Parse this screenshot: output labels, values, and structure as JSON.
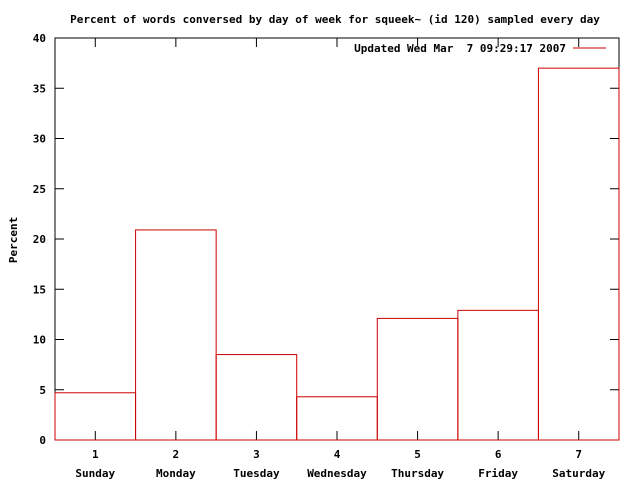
{
  "chart_data": {
    "type": "bar",
    "style": "histogram-steps",
    "title": "Percent of words conversed by day of week for squeek~ (id 120) sampled every day",
    "xlabel": "",
    "ylabel": "Percent",
    "x": [
      1,
      2,
      3,
      4,
      5,
      6,
      7
    ],
    "day_labels": [
      "Sunday",
      "Monday",
      "Tuesday",
      "Wednesday",
      "Thursday",
      "Friday",
      "Saturday"
    ],
    "xlim": [
      0.5,
      7.5
    ],
    "ylim": [
      0,
      40
    ],
    "yticks": [
      0,
      5,
      10,
      15,
      20,
      25,
      30,
      35,
      40
    ],
    "series": [
      {
        "name": "Updated Wed Mar  7 09:29:17 2007",
        "color": "#cc0000",
        "values": [
          4.7,
          20.9,
          8.5,
          4.3,
          12.1,
          12.9,
          37.0
        ]
      }
    ],
    "legend": "top-right",
    "grid": false
  }
}
